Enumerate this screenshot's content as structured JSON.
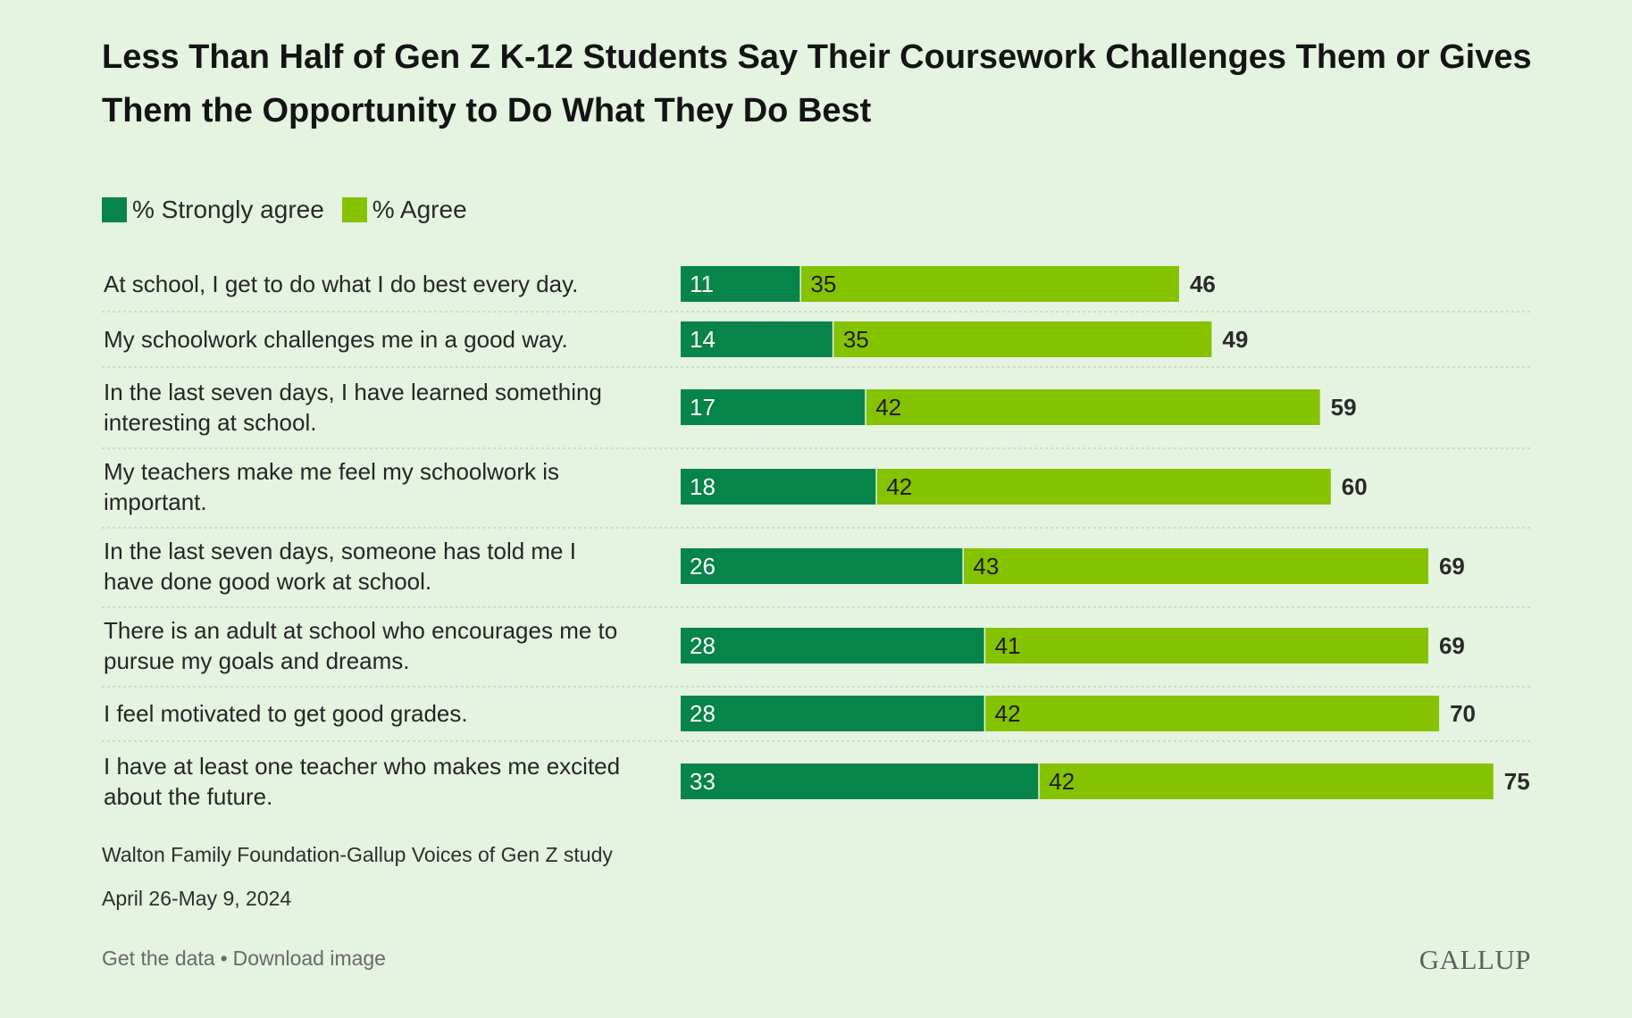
{
  "colors": {
    "background": "#e5f3e1",
    "strongly_agree": "#078447",
    "agree": "#85c200",
    "divider": "#c4d8c0"
  },
  "legend": {
    "strongly_agree_label": "% Strongly agree",
    "agree_label": "% Agree"
  },
  "footer": {
    "source": "Walton Family Foundation-Gallup Voices of Gen Z study",
    "dates": "April 26-May 9, 2024",
    "get_data": "Get the data",
    "separator": "•",
    "download": "Download image",
    "logo": "GALLUP"
  },
  "chart_data": {
    "type": "bar",
    "orientation": "horizontal",
    "stacked": true,
    "title": "Less Than Half of Gen Z K-12 Students Say Their Coursework Challenges Them or Gives Them the Opportunity to Do What They Do Best",
    "categories": [
      [
        "At school, I get to do what I do best every day."
      ],
      [
        "My schoolwork challenges me in a good way."
      ],
      [
        "In the last seven days, I have learned something",
        "interesting at school."
      ],
      [
        "My teachers make me feel my schoolwork is",
        "important."
      ],
      [
        "In the last seven days, someone has told me I",
        "have done good work at school."
      ],
      [
        "There is an adult at school who encourages me to",
        "pursue my goals and dreams."
      ],
      [
        "I feel motivated to get good grades."
      ],
      [
        "I have at least one teacher who makes me excited",
        "about the future."
      ]
    ],
    "series": [
      {
        "name": "% Strongly agree",
        "values": [
          11,
          14,
          17,
          18,
          26,
          28,
          28,
          33
        ]
      },
      {
        "name": "% Agree",
        "values": [
          35,
          35,
          42,
          42,
          43,
          41,
          42,
          42
        ]
      }
    ],
    "totals": [
      46,
      49,
      59,
      60,
      69,
      69,
      70,
      75
    ],
    "xlim": [
      0,
      75
    ],
    "grid": false,
    "legend_position": "top-left"
  }
}
